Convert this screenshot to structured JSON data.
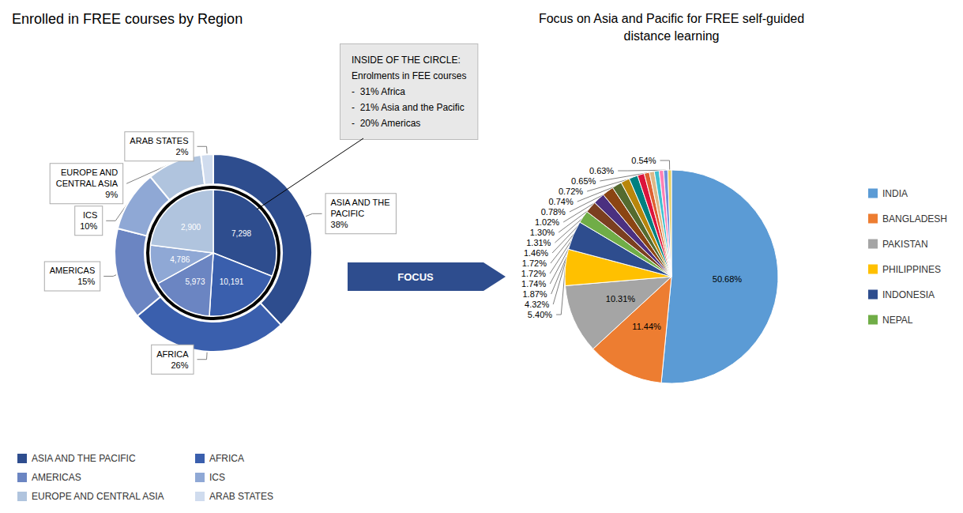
{
  "chart_data": [
    {
      "type": "donut",
      "title": "Enrolled in FREE courses by Region",
      "categories": [
        "ASIA AND THE PACIFIC",
        "AFRICA",
        "AMERICAS",
        "ICS",
        "EUROPE AND CENTRAL ASIA",
        "ARAB STATES"
      ],
      "values": [
        38,
        26,
        15,
        10,
        9,
        2
      ],
      "colors": [
        "#2e4d8e",
        "#3a5fad",
        "#6b85c2",
        "#8fa8d5",
        "#b0c4de",
        "#d0dcee"
      ],
      "data_labels": true,
      "value_labels": [
        "ASIA AND THE\nPACIFIC\n38%",
        "AFRICA\n26%",
        "AMERICAS\n15%",
        "ICS\n10%",
        "EUROPE AND\nCENTRAL ASIA\n9%",
        "ARAB STATES\n2%"
      ],
      "legend": "bottom",
      "annotations": [
        {
          "text": "INSIDE OF THE CIRCLE:\nEnrolments in FEE courses\n-  31% Africa\n-  21% Asia and the Pacific\n-  20% Americas",
          "color": "#e8e8e8"
        }
      ]
    },
    {
      "type": "pie",
      "values": [
        31,
        20,
        16,
        10,
        23
      ],
      "colors": [
        "#2e4d8e",
        "#3a5fad",
        "#6b85c2",
        "#8fa8d5",
        "#b0c4de"
      ],
      "annotations": [
        "10,191",
        "5,973",
        "4,786",
        "2,900",
        "7,298"
      ]
    },
    {
      "type": "pie",
      "title": "Focus on Asia and Pacific for FREE self-guided\ndistance learning",
      "categories": [
        "INDIA",
        "BANGLADESH",
        "PAKISTAN",
        "PHILIPPINES",
        "INDONESIA",
        "NEPAL",
        null,
        null,
        null,
        null,
        null,
        null,
        null,
        null,
        null,
        null,
        null,
        null,
        null
      ],
      "values": [
        50.68,
        11.44,
        10.31,
        5.4,
        4.32,
        1.87,
        1.74,
        1.72,
        1.72,
        1.46,
        1.31,
        1.3,
        1.02,
        0.78,
        0.74,
        0.72,
        0.65,
        0.63,
        0.54
      ],
      "colors": [
        "#5b9bd5",
        "#ed7d31",
        "#a5a5a5",
        "#ffc000",
        "#2e4d8e",
        "#70ad47",
        "#7b3f20",
        "#4b3080",
        "#8b4513",
        "#556b2f",
        "#b8860b",
        "#008080",
        "#dc143c",
        "#e06030",
        "#deb887",
        "#40c0d0",
        "#ff80b4",
        "#7090dd",
        "#e8d060"
      ],
      "data_labels": true,
      "value_labels": [
        "50.68%",
        "11.44%",
        "10.31%",
        "5.40%",
        "4.32%",
        "1.87%",
        "1.74%",
        "1.72%",
        "1.72%",
        "1.46%",
        "1.31%",
        "1.30%",
        "1.02%",
        "0.78%",
        "0.74%",
        "0.72%",
        "0.65%",
        "0.63%",
        "0.54%"
      ],
      "legend": "right",
      "annotations": [
        {
          "text": "FOCUS",
          "color": "#2e4d8e"
        }
      ]
    }
  ]
}
